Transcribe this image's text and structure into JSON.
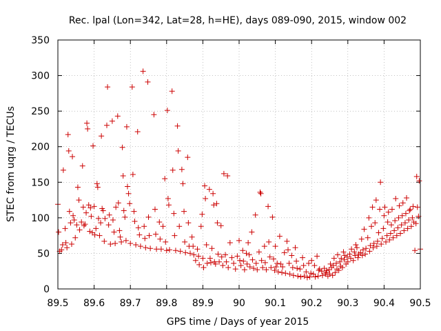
{
  "chart_data": {
    "type": "scatter",
    "title": "Rec. lpal (Lon=342, Lat=28, h=HE), days 089-090, 2015, window 002",
    "xlabel": "GPS time / Days of year 2015",
    "ylabel": "STEC from uqrg / TECUs",
    "xlim": [
      89.5,
      90.5
    ],
    "ylim": [
      0,
      350
    ],
    "xticks": [
      89.5,
      89.6,
      89.7,
      89.8,
      89.9,
      90.0,
      90.1,
      90.2,
      90.3,
      90.4,
      90.5
    ],
    "xtick_labels": [
      "89.5",
      "89.6",
      "89.7",
      "89.8",
      "89.9",
      "90",
      "90.1",
      "90.2",
      "90.3",
      "90.4",
      "90.5"
    ],
    "yticks": [
      0,
      50,
      100,
      150,
      200,
      250,
      300,
      350
    ],
    "ytick_labels": [
      "0",
      "50",
      "100",
      "150",
      "200",
      "250",
      "300",
      "350"
    ],
    "grid": true,
    "marker": "+",
    "color": "#cc0000",
    "points": [
      [
        89.5,
        119
      ],
      [
        89.502,
        80
      ],
      [
        89.505,
        53
      ],
      [
        89.51,
        55
      ],
      [
        89.513,
        62
      ],
      [
        89.515,
        167
      ],
      [
        89.52,
        85
      ],
      [
        89.522,
        65
      ],
      [
        89.525,
        58
      ],
      [
        89.528,
        217
      ],
      [
        89.53,
        194
      ],
      [
        89.532,
        109
      ],
      [
        89.535,
        93
      ],
      [
        89.538,
        63
      ],
      [
        89.54,
        186
      ],
      [
        89.542,
        103
      ],
      [
        89.545,
        97
      ],
      [
        89.548,
        72
      ],
      [
        89.552,
        90
      ],
      [
        89.555,
        143
      ],
      [
        89.558,
        125
      ],
      [
        89.56,
        83
      ],
      [
        89.565,
        94
      ],
      [
        89.568,
        173
      ],
      [
        89.57,
        115
      ],
      [
        89.572,
        89
      ],
      [
        89.575,
        91
      ],
      [
        89.578,
        107
      ],
      [
        89.58,
        233
      ],
      [
        89.582,
        225
      ],
      [
        89.585,
        118
      ],
      [
        89.588,
        81
      ],
      [
        89.59,
        114
      ],
      [
        89.592,
        102
      ],
      [
        89.595,
        79
      ],
      [
        89.597,
        201
      ],
      [
        89.6,
        116
      ],
      [
        89.602,
        76
      ],
      [
        89.605,
        85
      ],
      [
        89.608,
        148
      ],
      [
        89.61,
        143
      ],
      [
        89.612,
        99
      ],
      [
        89.615,
        75
      ],
      [
        89.618,
        93
      ],
      [
        89.62,
        215
      ],
      [
        89.622,
        113
      ],
      [
        89.625,
        110
      ],
      [
        89.628,
        67
      ],
      [
        89.63,
        99
      ],
      [
        89.635,
        230
      ],
      [
        89.637,
        284
      ],
      [
        89.64,
        90
      ],
      [
        89.642,
        104
      ],
      [
        89.645,
        63
      ],
      [
        89.65,
        236
      ],
      [
        89.652,
        97
      ],
      [
        89.655,
        80
      ],
      [
        89.658,
        64
      ],
      [
        89.66,
        115
      ],
      [
        89.665,
        243
      ],
      [
        89.667,
        121
      ],
      [
        89.67,
        82
      ],
      [
        89.672,
        73
      ],
      [
        89.675,
        66
      ],
      [
        89.678,
        199
      ],
      [
        89.68,
        159
      ],
      [
        89.682,
        110
      ],
      [
        89.685,
        101
      ],
      [
        89.688,
        68
      ],
      [
        89.69,
        228
      ],
      [
        89.692,
        144
      ],
      [
        89.695,
        134
      ],
      [
        89.698,
        120
      ],
      [
        89.7,
        64
      ],
      [
        89.705,
        284
      ],
      [
        89.707,
        161
      ],
      [
        89.71,
        109
      ],
      [
        89.712,
        95
      ],
      [
        89.715,
        62
      ],
      [
        89.72,
        221
      ],
      [
        89.722,
        86
      ],
      [
        89.725,
        76
      ],
      [
        89.728,
        60
      ],
      [
        89.735,
        306
      ],
      [
        89.738,
        88
      ],
      [
        89.74,
        71
      ],
      [
        89.742,
        58
      ],
      [
        89.748,
        291
      ],
      [
        89.75,
        101
      ],
      [
        89.752,
        75
      ],
      [
        89.755,
        57
      ],
      [
        89.765,
        245
      ],
      [
        89.768,
        112
      ],
      [
        89.77,
        77
      ],
      [
        89.772,
        56
      ],
      [
        89.78,
        94
      ],
      [
        89.782,
        70
      ],
      [
        89.785,
        56
      ],
      [
        89.79,
        88
      ],
      [
        89.795,
        155
      ],
      [
        89.797,
        66
      ],
      [
        89.8,
        54
      ],
      [
        89.802,
        251
      ],
      [
        89.804,
        127
      ],
      [
        89.806,
        118
      ],
      [
        89.808,
        55
      ],
      [
        89.815,
        278
      ],
      [
        89.817,
        167
      ],
      [
        89.82,
        106
      ],
      [
        89.822,
        75
      ],
      [
        89.825,
        54
      ],
      [
        89.83,
        229
      ],
      [
        89.832,
        194
      ],
      [
        89.835,
        88
      ],
      [
        89.838,
        53
      ],
      [
        89.842,
        168
      ],
      [
        89.845,
        148
      ],
      [
        89.848,
        109
      ],
      [
        89.85,
        66
      ],
      [
        89.852,
        51
      ],
      [
        89.858,
        185
      ],
      [
        89.86,
        93
      ],
      [
        89.862,
        60
      ],
      [
        89.865,
        50
      ],
      [
        89.87,
        73
      ],
      [
        89.873,
        60
      ],
      [
        89.875,
        48
      ],
      [
        89.88,
        40
      ],
      [
        89.885,
        56
      ],
      [
        89.888,
        46
      ],
      [
        89.89,
        34
      ],
      [
        89.895,
        88
      ],
      [
        89.898,
        105
      ],
      [
        89.9,
        43
      ],
      [
        89.902,
        30
      ],
      [
        89.905,
        145
      ],
      [
        89.907,
        127
      ],
      [
        89.91,
        62
      ],
      [
        89.912,
        36
      ],
      [
        89.918,
        140
      ],
      [
        89.92,
        43
      ],
      [
        89.922,
        37
      ],
      [
        89.925,
        57
      ],
      [
        89.928,
        134
      ],
      [
        89.93,
        118
      ],
      [
        89.932,
        38
      ],
      [
        89.935,
        35
      ],
      [
        89.938,
        120
      ],
      [
        89.94,
        93
      ],
      [
        89.942,
        49
      ],
      [
        89.945,
        38
      ],
      [
        89.95,
        89
      ],
      [
        89.952,
        45
      ],
      [
        89.955,
        33
      ],
      [
        89.958,
        162
      ],
      [
        89.962,
        48
      ],
      [
        89.965,
        38
      ],
      [
        89.968,
        159
      ],
      [
        89.97,
        30
      ],
      [
        89.975,
        65
      ],
      [
        89.98,
        44
      ],
      [
        89.985,
        36
      ],
      [
        89.99,
        28
      ],
      [
        89.995,
        46
      ],
      [
        90.0,
        68
      ],
      [
        90.002,
        40
      ],
      [
        90.005,
        33
      ],
      [
        90.01,
        54
      ],
      [
        90.012,
        39
      ],
      [
        90.015,
        27
      ],
      [
        90.02,
        50
      ],
      [
        90.022,
        35
      ],
      [
        90.025,
        65
      ],
      [
        90.028,
        48
      ],
      [
        90.03,
        31
      ],
      [
        90.035,
        80
      ],
      [
        90.037,
        41
      ],
      [
        90.04,
        29
      ],
      [
        90.045,
        104
      ],
      [
        90.047,
        36
      ],
      [
        90.05,
        27
      ],
      [
        90.055,
        52
      ],
      [
        90.058,
        136
      ],
      [
        90.06,
        134
      ],
      [
        90.062,
        40
      ],
      [
        90.065,
        30
      ],
      [
        90.07,
        60
      ],
      [
        90.072,
        37
      ],
      [
        90.075,
        27
      ],
      [
        90.08,
        116
      ],
      [
        90.082,
        66
      ],
      [
        90.085,
        45
      ],
      [
        90.088,
        30
      ],
      [
        90.092,
        101
      ],
      [
        90.095,
        42
      ],
      [
        90.098,
        26
      ],
      [
        90.1,
        60
      ],
      [
        90.102,
        31
      ],
      [
        90.105,
        36
      ],
      [
        90.108,
        24
      ],
      [
        90.112,
        74
      ],
      [
        90.115,
        35
      ],
      [
        90.118,
        23
      ],
      [
        90.12,
        31
      ],
      [
        90.125,
        51
      ],
      [
        90.128,
        22
      ],
      [
        90.132,
        67
      ],
      [
        90.135,
        55
      ],
      [
        90.138,
        36
      ],
      [
        90.14,
        21
      ],
      [
        90.145,
        47
      ],
      [
        90.148,
        30
      ],
      [
        90.15,
        19
      ],
      [
        90.155,
        58
      ],
      [
        90.158,
        39
      ],
      [
        90.16,
        29
      ],
      [
        90.162,
        18
      ],
      [
        90.168,
        28
      ],
      [
        90.17,
        17
      ],
      [
        90.175,
        44
      ],
      [
        90.178,
        33
      ],
      [
        90.18,
        18
      ],
      [
        90.185,
        24
      ],
      [
        90.188,
        16
      ],
      [
        90.192,
        36
      ],
      [
        90.195,
        17
      ],
      [
        90.198,
        22
      ],
      [
        90.2,
        40
      ],
      [
        90.205,
        21
      ],
      [
        90.208,
        33
      ],
      [
        90.21,
        17
      ],
      [
        90.215,
        46
      ],
      [
        90.218,
        18
      ],
      [
        90.22,
        26
      ],
      [
        90.222,
        28
      ],
      [
        90.228,
        25
      ],
      [
        90.23,
        19
      ],
      [
        90.235,
        29
      ],
      [
        90.238,
        21
      ],
      [
        90.24,
        23
      ],
      [
        90.242,
        26
      ],
      [
        90.245,
        18
      ],
      [
        90.248,
        27
      ],
      [
        90.25,
        21
      ],
      [
        90.252,
        35
      ],
      [
        90.255,
        30
      ],
      [
        90.258,
        19
      ],
      [
        90.26,
        33
      ],
      [
        90.262,
        43
      ],
      [
        90.265,
        23
      ],
      [
        90.268,
        36
      ],
      [
        90.27,
        28
      ],
      [
        90.272,
        48
      ],
      [
        90.275,
        26
      ],
      [
        90.278,
        38
      ],
      [
        90.28,
        32
      ],
      [
        90.282,
        43
      ],
      [
        90.285,
        30
      ],
      [
        90.288,
        52
      ],
      [
        90.29,
        41
      ],
      [
        90.292,
        47
      ],
      [
        90.295,
        35
      ],
      [
        90.298,
        45
      ],
      [
        90.3,
        38
      ],
      [
        90.305,
        49
      ],
      [
        90.308,
        43
      ],
      [
        90.31,
        56
      ],
      [
        90.315,
        40
      ],
      [
        90.318,
        52
      ],
      [
        90.32,
        47
      ],
      [
        90.322,
        62
      ],
      [
        90.325,
        58
      ],
      [
        90.328,
        44
      ],
      [
        90.33,
        49
      ],
      [
        90.335,
        51
      ],
      [
        90.338,
        70
      ],
      [
        90.34,
        47
      ],
      [
        90.342,
        55
      ],
      [
        90.345,
        84
      ],
      [
        90.348,
        49
      ],
      [
        90.35,
        57
      ],
      [
        90.355,
        72
      ],
      [
        90.358,
        100
      ],
      [
        90.36,
        53
      ],
      [
        90.362,
        61
      ],
      [
        90.365,
        88
      ],
      [
        90.368,
        115
      ],
      [
        90.37,
        58
      ],
      [
        90.372,
        64
      ],
      [
        90.375,
        93
      ],
      [
        90.378,
        125
      ],
      [
        90.38,
        60
      ],
      [
        90.382,
        67
      ],
      [
        90.385,
        79
      ],
      [
        90.388,
        112
      ],
      [
        90.39,
        150
      ],
      [
        90.392,
        63
      ],
      [
        90.395,
        71
      ],
      [
        90.398,
        85
      ],
      [
        90.4,
        103
      ],
      [
        90.402,
        115
      ],
      [
        90.405,
        66
      ],
      [
        90.408,
        75
      ],
      [
        90.41,
        94
      ],
      [
        90.412,
        108
      ],
      [
        90.415,
        69
      ],
      [
        90.418,
        78
      ],
      [
        90.42,
        90
      ],
      [
        90.422,
        112
      ],
      [
        90.425,
        72
      ],
      [
        90.428,
        82
      ],
      [
        90.43,
        96
      ],
      [
        90.432,
        127
      ],
      [
        90.435,
        75
      ],
      [
        90.438,
        86
      ],
      [
        90.44,
        100
      ],
      [
        90.442,
        117
      ],
      [
        90.445,
        78
      ],
      [
        90.448,
        90
      ],
      [
        90.45,
        103
      ],
      [
        90.452,
        121
      ],
      [
        90.455,
        82
      ],
      [
        90.458,
        93
      ],
      [
        90.46,
        106
      ],
      [
        90.462,
        128
      ],
      [
        90.465,
        85
      ],
      [
        90.468,
        97
      ],
      [
        90.47,
        110
      ],
      [
        90.472,
        112
      ],
      [
        90.475,
        88
      ],
      [
        90.478,
        100
      ],
      [
        90.48,
        116
      ],
      [
        90.482,
        94
      ],
      [
        90.485,
        54
      ],
      [
        90.488,
        92
      ],
      [
        90.49,
        158
      ],
      [
        90.492,
        115
      ],
      [
        90.495,
        102
      ],
      [
        90.497,
        152
      ],
      [
        90.5,
        56
      ]
    ]
  }
}
